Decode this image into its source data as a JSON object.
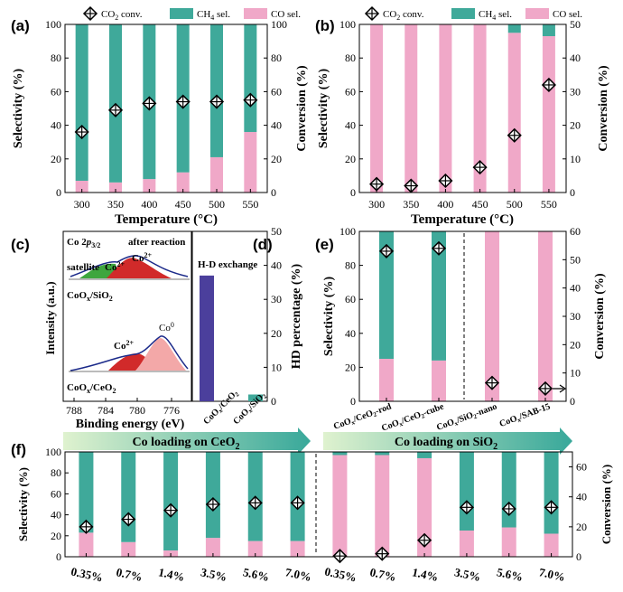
{
  "colors": {
    "ch4": "#3fa99a",
    "co": "#f0a8c8",
    "marker": "#000000",
    "banner": "#bfe6c0",
    "banner_dark": "#38a89a",
    "hd_bar1": "#4b3f9c",
    "hd_bar2": "#3fa99a"
  },
  "legend": {
    "conv": "CO2 conv.",
    "ch4": "CH4 sel.",
    "co": "CO sel."
  },
  "chart_data": [
    {
      "panel": "(a)",
      "type": "bar",
      "categories": [
        "300",
        "350",
        "400",
        "450",
        "500",
        "550"
      ],
      "series": [
        {
          "name": "CO sel.",
          "values": [
            7,
            6,
            8,
            12,
            21,
            36
          ]
        },
        {
          "name": "CH4 sel.",
          "values": [
            93,
            94,
            92,
            88,
            79,
            64
          ]
        },
        {
          "name": "CO2 conv.",
          "values": [
            36,
            49,
            53,
            54,
            54,
            55
          ]
        }
      ],
      "xlabel": "Temperature (°C)",
      "ylabel": "Selectivity (%)",
      "y2label": "Conversion (%)",
      "ylim": [
        0,
        100
      ],
      "y2lim": [
        0,
        100
      ],
      "yticks": [
        "0",
        "20",
        "40",
        "60",
        "80",
        "100"
      ],
      "y2ticks": [
        "0",
        "20",
        "40",
        "60",
        "80",
        "100"
      ]
    },
    {
      "panel": "(b)",
      "type": "bar",
      "categories": [
        "300",
        "350",
        "400",
        "450",
        "500",
        "550"
      ],
      "series": [
        {
          "name": "CO sel.",
          "values": [
            100,
            100,
            100,
            100,
            95,
            93
          ]
        },
        {
          "name": "CH4 sel.",
          "values": [
            0,
            0,
            0,
            0,
            5,
            7
          ]
        },
        {
          "name": "CO2 conv.",
          "values": [
            2.5,
            2,
            3.5,
            7.5,
            17,
            32
          ]
        }
      ],
      "xlabel": "Temperature (°C)",
      "ylabel": "Selectivity (%)",
      "y2label": "Conversion (%)",
      "ylim": [
        0,
        100
      ],
      "y2lim": [
        0,
        50
      ],
      "yticks": [
        "0",
        "20",
        "40",
        "60",
        "80",
        "100"
      ],
      "y2ticks": [
        "0",
        "10",
        "20",
        "30",
        "40",
        "50"
      ]
    },
    {
      "panel": "(c)",
      "type": "line",
      "title": "Co 2p3/2",
      "subtitle": "after reaction",
      "xlabel": "Binding energy (eV)",
      "ylabel": "Intensity (a.u.)",
      "xticks": [
        "788",
        "784",
        "780",
        "776"
      ],
      "annotations": [
        "satellite",
        "Co2+",
        "Co2+",
        "Co2+",
        "Co0"
      ],
      "samples": [
        "CoOx/SiO2",
        "CoOx/CeO2"
      ]
    },
    {
      "panel": "(d)",
      "type": "bar",
      "title": "H-D exchange",
      "categories": [
        "CoOx/CeO2",
        "CoOx/SiO2"
      ],
      "values": [
        37,
        2
      ],
      "ylabel": "HD percentage (%)",
      "ylim": [
        0,
        50
      ],
      "yticks": [
        "0",
        "10",
        "20",
        "30",
        "40",
        "50"
      ]
    },
    {
      "panel": "(e)",
      "type": "bar",
      "categories": [
        "CoOx/CeO2-rod",
        "CoOx/CeO2-cube",
        "CoOx/SiO2-nano",
        "CoOx/SAB-15"
      ],
      "series": [
        {
          "name": "CO sel.",
          "values": [
            25,
            24,
            100,
            100
          ]
        },
        {
          "name": "CH4 sel.",
          "values": [
            75,
            76,
            0,
            0
          ]
        },
        {
          "name": "CO2 conv.",
          "values": [
            53,
            54,
            6.5,
            4.5
          ]
        }
      ],
      "ylabel": "Selectivity (%)",
      "y2label": "Conversion (%)",
      "ylim": [
        0,
        100
      ],
      "y2lim": [
        0,
        60
      ],
      "yticks": [
        "0",
        "20",
        "40",
        "60",
        "80",
        "100"
      ],
      "y2ticks": [
        "0",
        "10",
        "20",
        "30",
        "40",
        "50",
        "60"
      ]
    },
    {
      "panel": "(f)",
      "type": "bar",
      "categories": [
        "0.35%",
        "0.7%",
        "1.4%",
        "3.5%",
        "5.6%",
        "7.0%",
        "0.35%",
        "0.7%",
        "1.4%",
        "3.5%",
        "5.6%",
        "7.0%"
      ],
      "series": [
        {
          "name": "CO sel.",
          "values": [
            23,
            14,
            6,
            18,
            15,
            15,
            97,
            97,
            94,
            25,
            28,
            22
          ]
        },
        {
          "name": "CH4 sel.",
          "values": [
            77,
            86,
            94,
            82,
            85,
            85,
            3,
            3,
            6,
            75,
            72,
            78
          ]
        },
        {
          "name": "CO2 conv.",
          "values": [
            20,
            25,
            31,
            35,
            36,
            36,
            0.5,
            2,
            11,
            33,
            32,
            33
          ]
        }
      ],
      "ylabel": "Selectivity (%)",
      "y2label": "Conversion (%)",
      "ylim": [
        0,
        100
      ],
      "y2lim": [
        0,
        70
      ],
      "yticks": [
        "0",
        "20",
        "40",
        "60",
        "80",
        "100"
      ],
      "y2ticks": [
        "0",
        "20",
        "40",
        "60"
      ],
      "groups": [
        "Co loading on CeO2",
        "Co loading on SiO2"
      ]
    }
  ]
}
